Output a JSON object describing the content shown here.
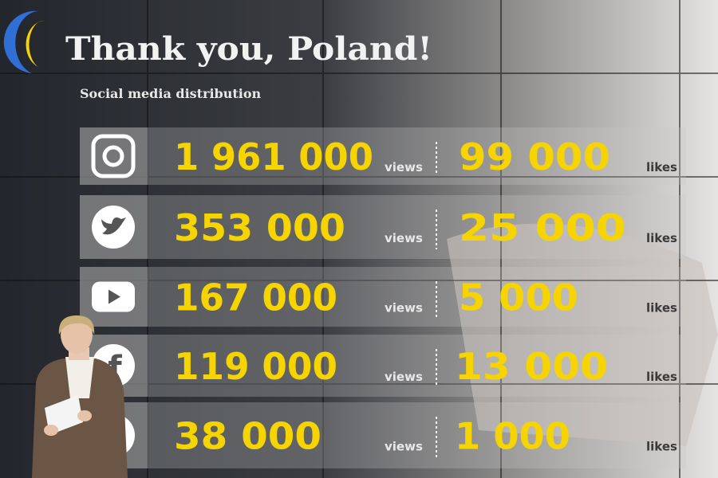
{
  "slide": {
    "title": "Thank you, Poland!",
    "subtitle": "Social media distribution",
    "rows": [
      {
        "views": "1 961 000",
        "views_label": "views",
        "likes": "99 000",
        "likes_label": "likes"
      },
      {
        "views": "353 000",
        "views_label": "views",
        "likes": "25 000",
        "likes_label": "likes"
      },
      {
        "views": "167 000",
        "views_label": "views",
        "likes": "5 000",
        "likes_label": "likes"
      },
      {
        "views": "119 000",
        "views_label": "views",
        "likes": "13 000",
        "likes_label": "likes"
      },
      {
        "views": "38 000",
        "views_label": "views",
        "likes": "1 000",
        "likes_label": "likes"
      }
    ]
  }
}
